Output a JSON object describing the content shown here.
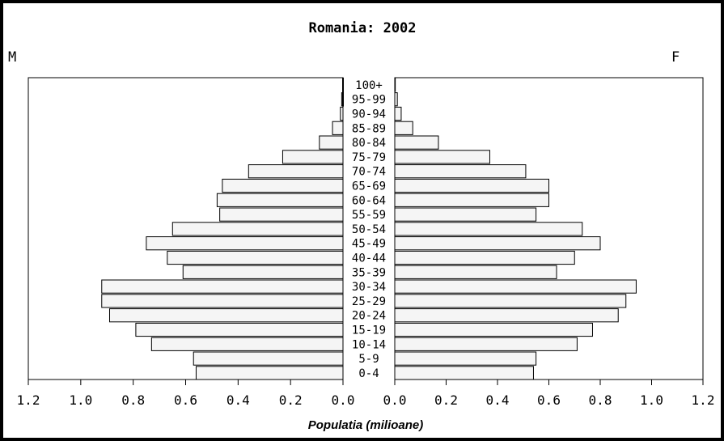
{
  "chart_data": {
    "type": "bar",
    "title": "Romania: 2002",
    "left_label": "M",
    "right_label": "F",
    "xlabel": "Populatia (milioane)",
    "xlim": [
      0,
      1.2
    ],
    "x_ticks_left": [
      "1.2",
      "1.0",
      "0.8",
      "0.6",
      "0.4",
      "0.2",
      "0.0"
    ],
    "x_ticks_right": [
      "0.0",
      "0.2",
      "0.4",
      "0.6",
      "0.8",
      "1.0",
      "1.2"
    ],
    "categories": [
      "0-4",
      "5-9",
      "10-14",
      "15-19",
      "20-24",
      "25-29",
      "30-34",
      "35-39",
      "40-44",
      "45-49",
      "50-54",
      "55-59",
      "60-64",
      "65-69",
      "70-74",
      "75-79",
      "80-84",
      "85-89",
      "90-94",
      "95-99",
      "100+"
    ],
    "series": [
      {
        "name": "M",
        "values": [
          0.56,
          0.57,
          0.73,
          0.79,
          0.89,
          0.92,
          0.92,
          0.61,
          0.67,
          0.75,
          0.65,
          0.47,
          0.48,
          0.46,
          0.36,
          0.23,
          0.09,
          0.04,
          0.01,
          0.005,
          0.0
        ]
      },
      {
        "name": "F",
        "values": [
          0.54,
          0.55,
          0.71,
          0.77,
          0.87,
          0.9,
          0.94,
          0.63,
          0.7,
          0.8,
          0.73,
          0.55,
          0.6,
          0.6,
          0.51,
          0.37,
          0.17,
          0.07,
          0.025,
          0.01,
          0.002
        ]
      }
    ],
    "colors": {
      "bar_fill": "#f5f5f5",
      "bar_stroke": "#000000",
      "frame": "#000000"
    },
    "grid": false,
    "legend": "none"
  }
}
